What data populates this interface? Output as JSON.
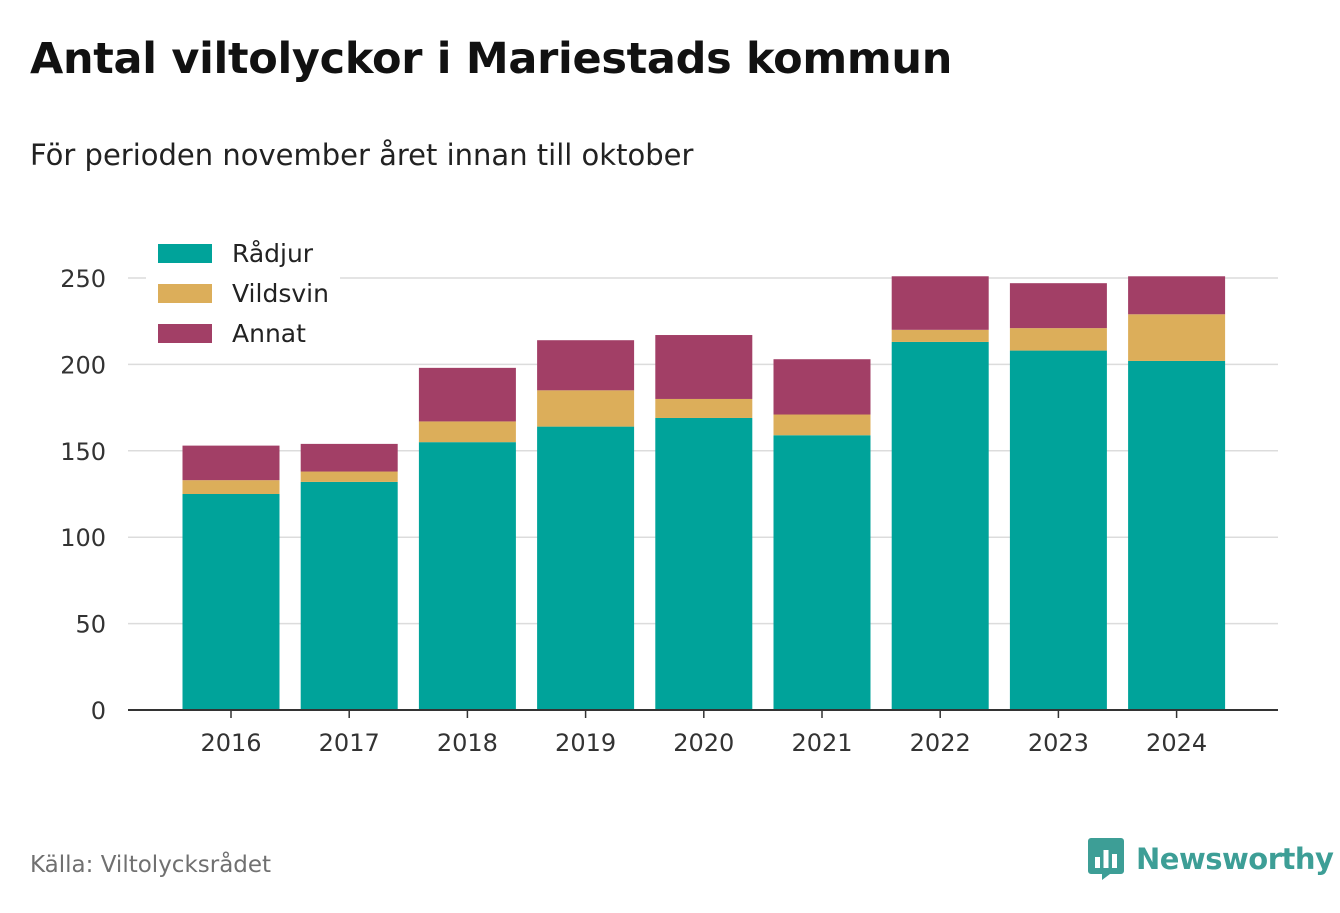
{
  "header": {
    "title": "Antal viltolyckor i Mariestads kommun",
    "subtitle": "För perioden november året innan till oktober"
  },
  "footer": {
    "source": "Källa: Viltolycksrådet",
    "brand": "Newsworthy",
    "brand_icon": "bar-chart-speech-bubble-icon"
  },
  "colors": {
    "radjur": "#00a39a",
    "vildsvin": "#dcae5a",
    "annat": "#a23f66",
    "grid": "#dcdcdc",
    "axis": "#333333",
    "brand": "#3d9e96"
  },
  "chart_data": {
    "type": "bar",
    "stacked": true,
    "categories": [
      "2016",
      "2017",
      "2018",
      "2019",
      "2020",
      "2021",
      "2022",
      "2023",
      "2024"
    ],
    "series": [
      {
        "name": "Rådjur",
        "color": "#00a39a",
        "values": [
          125,
          132,
          155,
          164,
          169,
          159,
          213,
          208,
          202
        ]
      },
      {
        "name": "Vildsvin",
        "color": "#dcae5a",
        "values": [
          8,
          6,
          12,
          21,
          11,
          12,
          7,
          13,
          27
        ]
      },
      {
        "name": "Annat",
        "color": "#a23f66",
        "values": [
          20,
          16,
          31,
          29,
          37,
          32,
          31,
          26,
          22
        ]
      }
    ],
    "ylim": [
      0,
      250
    ],
    "yticks": [
      0,
      50,
      100,
      150,
      200,
      250
    ],
    "grid": true,
    "legend_position": "top-left"
  }
}
